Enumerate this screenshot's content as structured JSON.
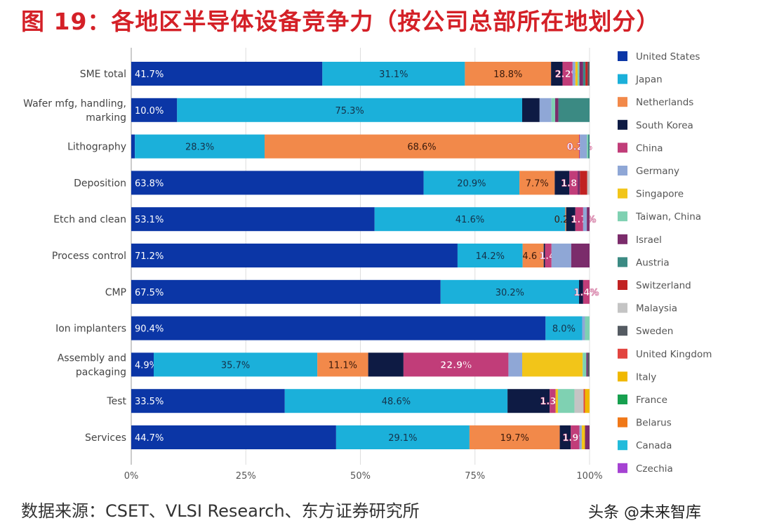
{
  "title": "图 19：各地区半导体设备竞争力（按公司总部所在地划分）",
  "source": "数据来源：CSET、VLSI Research、东方证券研究所",
  "watermark": "头条 @未来智库",
  "chart_data": {
    "type": "bar",
    "orientation": "horizontal",
    "stacked": "100%",
    "xlim": [
      0,
      100
    ],
    "xticks": [
      "0%",
      "25%",
      "50%",
      "75%",
      "100%"
    ],
    "grid": true,
    "legend_position": "right",
    "categories": [
      "SME total",
      "Wafer mfg, handling, marking",
      "Lithography",
      "Deposition",
      "Etch and clean",
      "Process control",
      "CMP",
      "Ion implanters",
      "Assembly and packaging",
      "Test",
      "Services"
    ],
    "series": [
      {
        "name": "United States",
        "color": "#0b36a6",
        "values": [
          41.7,
          10.0,
          0.8,
          63.8,
          53.1,
          71.2,
          67.5,
          90.4,
          4.9,
          33.5,
          44.7
        ]
      },
      {
        "name": "Japan",
        "color": "#1bb0da",
        "values": [
          31.1,
          75.3,
          28.3,
          20.9,
          41.6,
          14.2,
          30.2,
          8.0,
          35.7,
          48.6,
          29.1
        ]
      },
      {
        "name": "Netherlands",
        "color": "#f2894a",
        "values": [
          18.8,
          0,
          68.6,
          7.7,
          0.2,
          4.6,
          0,
          0,
          11.1,
          0,
          19.7
        ]
      },
      {
        "name": "South Korea",
        "color": "#0e1b44",
        "values": [
          2.5,
          3.8,
          0,
          3.2,
          2.0,
          0.3,
          0.9,
          0,
          7.7,
          9.2,
          2.4
        ]
      },
      {
        "name": "China",
        "color": "#c13d79",
        "values": [
          2.2,
          0,
          0.2,
          1.8,
          1.7,
          1.4,
          1.4,
          0,
          22.9,
          1.3,
          1.9
        ]
      },
      {
        "name": "Germany",
        "color": "#8fa7d6",
        "values": [
          0.6,
          2.6,
          1.5,
          0,
          0.8,
          4.3,
          0,
          0.6,
          3.0,
          0,
          0.5
        ]
      },
      {
        "name": "Singapore",
        "color": "#f2c519",
        "values": [
          0.5,
          0,
          0,
          0,
          0,
          0,
          0,
          0,
          13.2,
          0.5,
          0.7
        ]
      },
      {
        "name": "Taiwan, China",
        "color": "#7fd1b2",
        "values": [
          0.4,
          0.8,
          0.3,
          0,
          0,
          0,
          0,
          1.0,
          0.8,
          3.6,
          0
        ]
      },
      {
        "name": "Israel",
        "color": "#7b2c6b",
        "values": [
          0.8,
          0.7,
          0,
          0.5,
          0.6,
          4.0,
          0,
          0,
          0.3,
          0,
          1.0
        ]
      },
      {
        "name": "Austria",
        "color": "#3b8a83",
        "values": [
          0.5,
          6.8,
          0.3,
          0,
          0,
          0,
          0,
          0,
          0,
          0,
          0
        ]
      },
      {
        "name": "Switzerland",
        "color": "#c12222",
        "values": [
          0.5,
          0,
          0,
          1.6,
          0,
          0,
          0,
          0,
          0,
          0,
          0
        ]
      },
      {
        "name": "Malaysia",
        "color": "#c4c4c4",
        "values": [
          0,
          0,
          0,
          0.5,
          0,
          0,
          0,
          0,
          0,
          2.0,
          0
        ]
      },
      {
        "name": "Sweden",
        "color": "#555b62",
        "values": [
          0.4,
          0,
          0,
          0,
          0,
          0,
          0,
          0,
          0.4,
          0,
          0
        ]
      },
      {
        "name": "United Kingdom",
        "color": "#e2443f",
        "values": [
          0,
          0,
          0,
          0,
          0,
          0,
          0,
          0,
          0,
          0.3,
          0
        ]
      },
      {
        "name": "Italy",
        "color": "#f0b800",
        "values": [
          0,
          0,
          0,
          0,
          0,
          0,
          0,
          0,
          0,
          1.0,
          0
        ]
      },
      {
        "name": "France",
        "color": "#17a04f",
        "values": [
          0,
          0,
          0,
          0,
          0,
          0,
          0,
          0,
          0,
          0,
          0
        ]
      },
      {
        "name": "Belarus",
        "color": "#f07818",
        "values": [
          0,
          0,
          0,
          0,
          0,
          0,
          0,
          0,
          0,
          0,
          0
        ]
      },
      {
        "name": "Canada",
        "color": "#22bbdb",
        "values": [
          0,
          0,
          0,
          0,
          0,
          0,
          0,
          0,
          0,
          0,
          0
        ]
      },
      {
        "name": "Czechia",
        "color": "#a542d2",
        "values": [
          0,
          0,
          0,
          0,
          0,
          0,
          0,
          0,
          0,
          0,
          0
        ]
      }
    ],
    "data_labels": [
      {
        "United States": "41.7%",
        "Japan": "31.1%",
        "Netherlands": "18.8%",
        "China": "2.2%"
      },
      {
        "United States": "10.0%",
        "Japan": "75.3%"
      },
      {
        "United States": "0.8%",
        "Japan": "28.3%",
        "Netherlands": "68.6%",
        "China": "0.2%"
      },
      {
        "United States": "63.8%",
        "Japan": "20.9%",
        "Netherlands": "7.7%",
        "China": "1.8%"
      },
      {
        "United States": "53.1%",
        "Japan": "41.6%",
        "Netherlands": "0.2",
        "China": "1.7%"
      },
      {
        "United States": "71.2%",
        "Japan": "14.2%",
        "Netherlands": "4.6",
        "China": "1.4%"
      },
      {
        "United States": "67.5%",
        "Japan": "30.2%",
        "China": "1.4%"
      },
      {
        "United States": "90.4%",
        "Japan": "8.0%"
      },
      {
        "United States": "4.9%",
        "Japan": "35.7%",
        "Netherlands": "11.1%",
        "China": "22.9%"
      },
      {
        "United States": "33.5%",
        "Japan": "48.6%",
        "China": "1.3%"
      },
      {
        "United States": "44.7%",
        "Japan": "29.1%",
        "Netherlands": "19.7%",
        "China": "1.9%"
      }
    ]
  }
}
